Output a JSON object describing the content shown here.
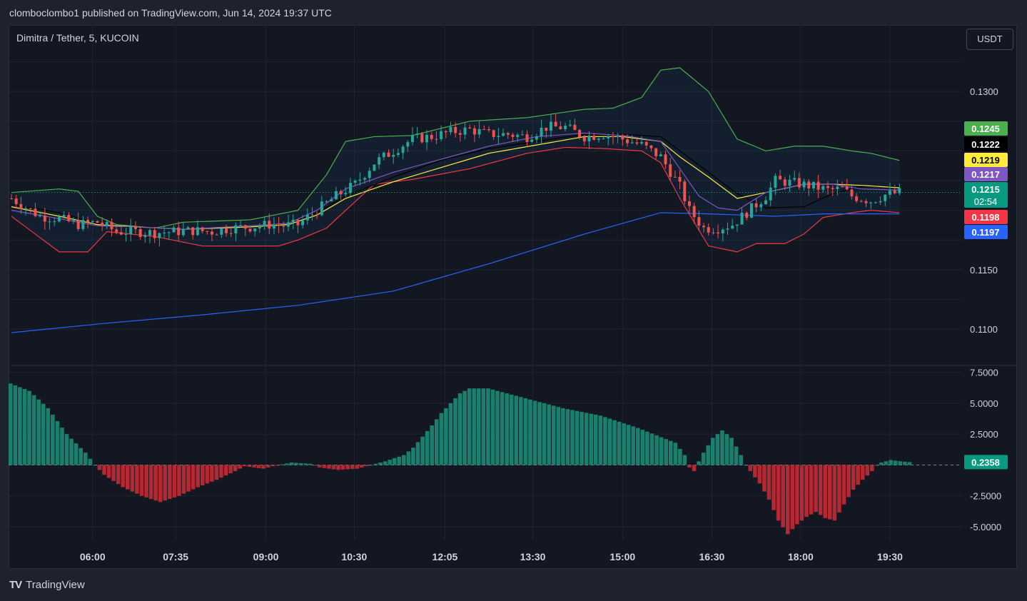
{
  "header": {
    "published": "clomboclombo1 published on TradingView.com, Jun 14, 2024 19:37 UTC"
  },
  "symbol": "Dimitra / Tether, 5, KUCOIN",
  "currency": "USDT",
  "brand": {
    "logo": "TV",
    "name": "TradingView"
  },
  "colors": {
    "bg": "#131722",
    "up": "#26a69a",
    "down": "#ef5350",
    "bb_upper": "#4caf50",
    "bb_lower": "#f23645",
    "ma_black": "#000000",
    "ma_yellow": "#ffeb3b",
    "ma_purple": "#7e57c2",
    "ma_blue": "#2962ff",
    "hist_up": "#1b7f6e",
    "hist_down": "#b22833"
  },
  "chart_data": [
    {
      "type": "candlestick",
      "x_ticks": [
        "06:00",
        "07:35",
        "09:00",
        "10:30",
        "12:05",
        "13:30",
        "15:00",
        "16:30",
        "18:00",
        "19:30"
      ],
      "y_ticks": [
        "0.1300",
        "0.1150",
        "0.1100"
      ],
      "ylim": [
        0.107,
        0.135
      ],
      "grid": true,
      "price_labels": [
        {
          "value": "0.1245",
          "series": "bb-upper",
          "color": "#4caf50"
        },
        {
          "value": "0.1222",
          "series": "ma-black",
          "color": "#000000"
        },
        {
          "value": "0.1219",
          "series": "ma-yellow",
          "color": "#ffeb3b"
        },
        {
          "value": "0.1217",
          "series": "ma-purple",
          "color": "#7e57c2"
        },
        {
          "value": "0.1215",
          "series": "last-price",
          "color": "#089981",
          "countdown": "02:54"
        },
        {
          "value": "0.1198",
          "series": "bb-lower",
          "color": "#f23645"
        },
        {
          "value": "0.1197",
          "series": "ma-blue",
          "color": "#2962ff"
        }
      ],
      "last_price": 0.1215,
      "candle_anchors": [
        [
          0,
          0.121
        ],
        [
          6,
          0.1195
        ],
        [
          10,
          0.1193
        ],
        [
          14,
          0.1188
        ],
        [
          18,
          0.119
        ],
        [
          22,
          0.1182
        ],
        [
          26,
          0.1182
        ],
        [
          30,
          0.1181
        ],
        [
          34,
          0.1182
        ],
        [
          38,
          0.1183
        ],
        [
          42,
          0.1182
        ],
        [
          46,
          0.1185
        ],
        [
          50,
          0.1186
        ],
        [
          54,
          0.1188
        ],
        [
          57,
          0.1187
        ],
        [
          60,
          0.1188
        ],
        [
          64,
          0.12
        ],
        [
          68,
          0.1212
        ],
        [
          72,
          0.1222
        ],
        [
          76,
          0.124
        ],
        [
          80,
          0.125
        ],
        [
          84,
          0.126
        ],
        [
          88,
          0.1262
        ],
        [
          92,
          0.1266
        ],
        [
          96,
          0.1268
        ],
        [
          100,
          0.1264
        ],
        [
          104,
          0.1264
        ],
        [
          108,
          0.1262
        ],
        [
          112,
          0.127
        ],
        [
          116,
          0.127
        ],
        [
          120,
          0.1262
        ],
        [
          124,
          0.1264
        ],
        [
          128,
          0.126
        ],
        [
          132,
          0.1255
        ],
        [
          136,
          0.1245
        ],
        [
          140,
          0.122
        ],
        [
          142,
          0.12
        ],
        [
          145,
          0.1185
        ],
        [
          148,
          0.1185
        ],
        [
          151,
          0.1188
        ],
        [
          154,
          0.1198
        ],
        [
          158,
          0.1212
        ],
        [
          160,
          0.1225
        ],
        [
          164,
          0.1223
        ],
        [
          168,
          0.122
        ],
        [
          171,
          0.1217
        ],
        [
          174,
          0.1218
        ],
        [
          176,
          0.1212
        ],
        [
          180,
          0.1208
        ],
        [
          183,
          0.1213
        ],
        [
          186,
          0.1215
        ]
      ],
      "series": [
        {
          "name": "bb-upper",
          "anchors": [
            [
              0,
              0.1215
            ],
            [
              10,
              0.1218
            ],
            [
              14,
              0.1216
            ],
            [
              18,
              0.1195
            ],
            [
              22,
              0.1188
            ],
            [
              30,
              0.1185
            ],
            [
              36,
              0.119
            ],
            [
              50,
              0.1192
            ],
            [
              60,
              0.12
            ],
            [
              66,
              0.123
            ],
            [
              70,
              0.1258
            ],
            [
              76,
              0.1262
            ],
            [
              84,
              0.1263
            ],
            [
              96,
              0.1275
            ],
            [
              108,
              0.1278
            ],
            [
              120,
              0.1285
            ],
            [
              126,
              0.1286
            ],
            [
              132,
              0.1295
            ],
            [
              136,
              0.1318
            ],
            [
              140,
              0.132
            ],
            [
              146,
              0.13
            ],
            [
              152,
              0.126
            ],
            [
              158,
              0.125
            ],
            [
              164,
              0.1254
            ],
            [
              170,
              0.1254
            ],
            [
              176,
              0.125
            ],
            [
              180,
              0.1248
            ],
            [
              186,
              0.1242
            ]
          ]
        },
        {
          "name": "bb-lower",
          "anchors": [
            [
              0,
              0.1195
            ],
            [
              10,
              0.1165
            ],
            [
              16,
              0.1165
            ],
            [
              20,
              0.1182
            ],
            [
              30,
              0.1178
            ],
            [
              40,
              0.117
            ],
            [
              50,
              0.117
            ],
            [
              56,
              0.117
            ],
            [
              60,
              0.1175
            ],
            [
              66,
              0.1185
            ],
            [
              70,
              0.12
            ],
            [
              76,
              0.1222
            ],
            [
              84,
              0.1226
            ],
            [
              96,
              0.1235
            ],
            [
              108,
              0.1248
            ],
            [
              116,
              0.1253
            ],
            [
              124,
              0.1252
            ],
            [
              132,
              0.125
            ],
            [
              136,
              0.124
            ],
            [
              140,
              0.121
            ],
            [
              146,
              0.117
            ],
            [
              152,
              0.1165
            ],
            [
              156,
              0.1172
            ],
            [
              162,
              0.1172
            ],
            [
              166,
              0.118
            ],
            [
              170,
              0.1194
            ],
            [
              176,
              0.1198
            ],
            [
              180,
              0.12
            ],
            [
              186,
              0.1198
            ]
          ]
        },
        {
          "name": "ma-black",
          "anchors": [
            [
              0,
              0.1205
            ],
            [
              10,
              0.1198
            ],
            [
              18,
              0.1189
            ],
            [
              26,
              0.1185
            ],
            [
              36,
              0.1184
            ],
            [
              50,
              0.1186
            ],
            [
              58,
              0.1189
            ],
            [
              64,
              0.1198
            ],
            [
              70,
              0.1212
            ],
            [
              80,
              0.1228
            ],
            [
              90,
              0.1242
            ],
            [
              100,
              0.1252
            ],
            [
              110,
              0.1258
            ],
            [
              120,
              0.1264
            ],
            [
              128,
              0.1264
            ],
            [
              136,
              0.1262
            ],
            [
              140,
              0.125
            ],
            [
              146,
              0.1232
            ],
            [
              152,
              0.1214
            ],
            [
              158,
              0.1202
            ],
            [
              166,
              0.1203
            ],
            [
              172,
              0.1214
            ],
            [
              178,
              0.122
            ],
            [
              186,
              0.122
            ]
          ]
        },
        {
          "name": "ma-yellow",
          "anchors": [
            [
              0,
              0.1203
            ],
            [
              10,
              0.1195
            ],
            [
              18,
              0.1188
            ],
            [
              26,
              0.1186
            ],
            [
              36,
              0.1184
            ],
            [
              50,
              0.1186
            ],
            [
              58,
              0.1188
            ],
            [
              64,
              0.1196
            ],
            [
              70,
              0.121
            ],
            [
              80,
              0.1224
            ],
            [
              90,
              0.1236
            ],
            [
              100,
              0.1248
            ],
            [
              110,
              0.1255
            ],
            [
              120,
              0.1262
            ],
            [
              128,
              0.1262
            ],
            [
              136,
              0.1258
            ],
            [
              140,
              0.1245
            ],
            [
              146,
              0.1228
            ],
            [
              152,
              0.121
            ],
            [
              158,
              0.1215
            ],
            [
              166,
              0.1222
            ],
            [
              172,
              0.1222
            ],
            [
              178,
              0.1221
            ],
            [
              186,
              0.1219
            ]
          ]
        },
        {
          "name": "ma-purple",
          "anchors": [
            [
              0,
              0.12
            ],
            [
              10,
              0.1193
            ],
            [
              18,
              0.1187
            ],
            [
              26,
              0.1186
            ],
            [
              36,
              0.1184
            ],
            [
              50,
              0.1187
            ],
            [
              58,
              0.1189
            ],
            [
              64,
              0.12
            ],
            [
              70,
              0.1218
            ],
            [
              80,
              0.1232
            ],
            [
              90,
              0.1243
            ],
            [
              100,
              0.1254
            ],
            [
              110,
              0.1262
            ],
            [
              120,
              0.1265
            ],
            [
              128,
              0.1263
            ],
            [
              136,
              0.1258
            ],
            [
              140,
              0.1235
            ],
            [
              144,
              0.1212
            ],
            [
              148,
              0.1202
            ],
            [
              152,
              0.12
            ],
            [
              158,
              0.1215
            ],
            [
              166,
              0.1222
            ],
            [
              172,
              0.1222
            ],
            [
              178,
              0.1218
            ],
            [
              186,
              0.1217
            ]
          ]
        },
        {
          "name": "ma-blue",
          "anchors": [
            [
              0,
              0.1097
            ],
            [
              20,
              0.1105
            ],
            [
              40,
              0.1112
            ],
            [
              60,
              0.112
            ],
            [
              80,
              0.1132
            ],
            [
              100,
              0.1155
            ],
            [
              120,
              0.118
            ],
            [
              136,
              0.1198
            ],
            [
              146,
              0.1197
            ],
            [
              160,
              0.1195
            ],
            [
              170,
              0.1197
            ],
            [
              186,
              0.1197
            ]
          ]
        }
      ]
    },
    {
      "type": "histogram",
      "y_ticks": [
        "7.5000",
        "5.0000",
        "2.5000",
        "0.0000",
        "-2.5000",
        "-5.0000"
      ],
      "ylim": [
        -6.1,
        8.0
      ],
      "last_value": "0.2358",
      "anchors": [
        [
          0,
          6.6
        ],
        [
          4,
          6.0
        ],
        [
          8,
          4.6
        ],
        [
          12,
          2.5
        ],
        [
          16,
          1.0
        ],
        [
          18,
          0.0
        ],
        [
          20,
          -0.8
        ],
        [
          24,
          -1.8
        ],
        [
          28,
          -2.5
        ],
        [
          32,
          -3.0
        ],
        [
          36,
          -2.5
        ],
        [
          40,
          -1.8
        ],
        [
          44,
          -1.2
        ],
        [
          48,
          -0.5
        ],
        [
          50,
          -0.1
        ],
        [
          54,
          -0.3
        ],
        [
          56,
          -0.1
        ],
        [
          60,
          0.2
        ],
        [
          64,
          0.1
        ],
        [
          66,
          -0.2
        ],
        [
          70,
          -0.4
        ],
        [
          74,
          -0.3
        ],
        [
          76,
          -0.1
        ],
        [
          80,
          0.3
        ],
        [
          84,
          0.8
        ],
        [
          86,
          1.4
        ],
        [
          88,
          2.3
        ],
        [
          90,
          3.2
        ],
        [
          92,
          4.2
        ],
        [
          94,
          5.0
        ],
        [
          96,
          5.8
        ],
        [
          98,
          6.2
        ],
        [
          102,
          6.2
        ],
        [
          104,
          6.0
        ],
        [
          106,
          5.8
        ],
        [
          110,
          5.4
        ],
        [
          114,
          5.0
        ],
        [
          118,
          4.6
        ],
        [
          122,
          4.3
        ],
        [
          126,
          4.0
        ],
        [
          130,
          3.5
        ],
        [
          134,
          3.0
        ],
        [
          138,
          2.4
        ],
        [
          142,
          1.8
        ],
        [
          144,
          0.8
        ],
        [
          145,
          -0.2
        ],
        [
          146,
          -0.5
        ],
        [
          147,
          0.3
        ],
        [
          148,
          1.0
        ],
        [
          150,
          2.2
        ],
        [
          152,
          2.8
        ],
        [
          154,
          2.2
        ],
        [
          156,
          0.8
        ],
        [
          157,
          0.0
        ],
        [
          158,
          -0.5
        ],
        [
          160,
          -1.5
        ],
        [
          162,
          -2.8
        ],
        [
          164,
          -4.5
        ],
        [
          166,
          -5.6
        ],
        [
          168,
          -4.8
        ],
        [
          170,
          -4.2
        ],
        [
          172,
          -3.8
        ],
        [
          174,
          -4.3
        ],
        [
          176,
          -4.5
        ],
        [
          178,
          -3.2
        ],
        [
          180,
          -2.0
        ],
        [
          182,
          -1.2
        ],
        [
          184,
          -0.5
        ],
        [
          185,
          0.0
        ],
        [
          186,
          0.2
        ],
        [
          188,
          0.4
        ],
        [
          190,
          0.3
        ],
        [
          192,
          0.2358
        ]
      ]
    }
  ]
}
